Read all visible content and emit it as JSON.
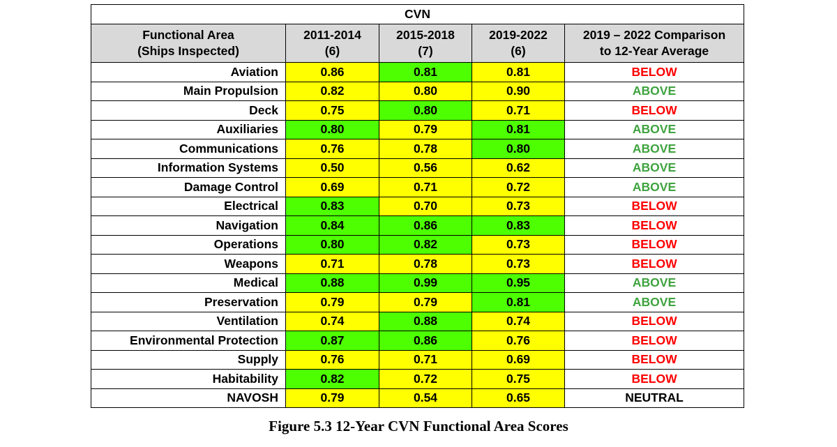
{
  "table": {
    "title": "CVN",
    "headers": {
      "functional_area": [
        "Functional Area",
        "(Ships Inspected)"
      ],
      "period1": [
        "2011-2014",
        "(6)"
      ],
      "period2": [
        "2015-2018",
        "(7)"
      ],
      "period3": [
        "2019-2022",
        "(6)"
      ],
      "comparison": [
        "2019 – 2022 Comparison",
        "to 12-Year Average"
      ]
    },
    "colors": {
      "yellow": "#ffff00",
      "green": "#4dff00",
      "below_text": "#ff0000",
      "above_text": "#3fa33f",
      "header_bg": "#d9d9d9"
    },
    "rows": [
      {
        "area": "Aviation",
        "p1": "0.86",
        "p2": "0.81",
        "p3": "0.81",
        "c1": "y",
        "c2": "g",
        "c3": "y",
        "comparison": "BELOW"
      },
      {
        "area": "Main Propulsion",
        "p1": "0.82",
        "p2": "0.80",
        "p3": "0.90",
        "c1": "y",
        "c2": "y",
        "c3": "y",
        "comparison": "ABOVE"
      },
      {
        "area": "Deck",
        "p1": "0.75",
        "p2": "0.80",
        "p3": "0.71",
        "c1": "y",
        "c2": "g",
        "c3": "y",
        "comparison": "BELOW"
      },
      {
        "area": "Auxiliaries",
        "p1": "0.80",
        "p2": "0.79",
        "p3": "0.81",
        "c1": "g",
        "c2": "y",
        "c3": "g",
        "comparison": "ABOVE"
      },
      {
        "area": "Communications",
        "p1": "0.76",
        "p2": "0.78",
        "p3": "0.80",
        "c1": "y",
        "c2": "y",
        "c3": "g",
        "comparison": "ABOVE"
      },
      {
        "area": "Information Systems",
        "p1": "0.50",
        "p2": "0.56",
        "p3": "0.62",
        "c1": "y",
        "c2": "y",
        "c3": "y",
        "comparison": "ABOVE"
      },
      {
        "area": "Damage Control",
        "p1": "0.69",
        "p2": "0.71",
        "p3": "0.72",
        "c1": "y",
        "c2": "y",
        "c3": "y",
        "comparison": "ABOVE"
      },
      {
        "area": "Electrical",
        "p1": "0.83",
        "p2": "0.70",
        "p3": "0.73",
        "c1": "g",
        "c2": "y",
        "c3": "y",
        "comparison": "BELOW"
      },
      {
        "area": "Navigation",
        "p1": "0.84",
        "p2": "0.86",
        "p3": "0.83",
        "c1": "g",
        "c2": "g",
        "c3": "g",
        "comparison": "BELOW"
      },
      {
        "area": "Operations",
        "p1": "0.80",
        "p2": "0.82",
        "p3": "0.73",
        "c1": "g",
        "c2": "g",
        "c3": "y",
        "comparison": "BELOW"
      },
      {
        "area": "Weapons",
        "p1": "0.71",
        "p2": "0.78",
        "p3": "0.73",
        "c1": "y",
        "c2": "y",
        "c3": "y",
        "comparison": "BELOW"
      },
      {
        "area": "Medical",
        "p1": "0.88",
        "p2": "0.99",
        "p3": "0.95",
        "c1": "g",
        "c2": "g",
        "c3": "g",
        "comparison": "ABOVE"
      },
      {
        "area": "Preservation",
        "p1": "0.79",
        "p2": "0.79",
        "p3": "0.81",
        "c1": "y",
        "c2": "y",
        "c3": "g",
        "comparison": "ABOVE"
      },
      {
        "area": "Ventilation",
        "p1": "0.74",
        "p2": "0.88",
        "p3": "0.74",
        "c1": "y",
        "c2": "g",
        "c3": "y",
        "comparison": "BELOW"
      },
      {
        "area": "Environmental Protection",
        "p1": "0.87",
        "p2": "0.86",
        "p3": "0.76",
        "c1": "g",
        "c2": "g",
        "c3": "y",
        "comparison": "BELOW"
      },
      {
        "area": "Supply",
        "p1": "0.76",
        "p2": "0.71",
        "p3": "0.69",
        "c1": "y",
        "c2": "y",
        "c3": "y",
        "comparison": "BELOW"
      },
      {
        "area": "Habitability",
        "p1": "0.82",
        "p2": "0.72",
        "p3": "0.75",
        "c1": "g",
        "c2": "y",
        "c3": "y",
        "comparison": "BELOW"
      },
      {
        "area": "NAVOSH",
        "p1": "0.79",
        "p2": "0.54",
        "p3": "0.65",
        "c1": "y",
        "c2": "y",
        "c3": "y",
        "comparison": "NEUTRAL"
      }
    ]
  },
  "caption": "Figure 5.3 12-Year CVN Functional Area Scores"
}
